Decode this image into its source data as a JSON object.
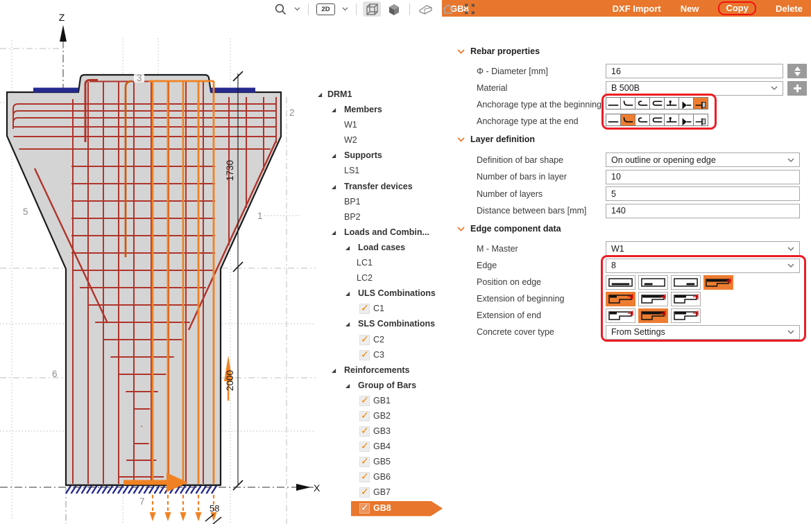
{
  "toolbar": {
    "mode_label": "2D",
    "icons": [
      "search-icon",
      "chevron-down-icon",
      "mode-2d-button",
      "chevron-down-icon",
      "wireframe-cube-icon",
      "solid-cube-icon",
      "prism-view-icon",
      "home-icon",
      "fullscreen-icon"
    ]
  },
  "header": {
    "title": "GB8",
    "actions": {
      "dxf": "DXF Import",
      "new": "New",
      "copy": "Copy",
      "delete": "Delete"
    },
    "copy_highlighted": true,
    "accent_color": "#E8762C",
    "annotation_color": "#EC1C24"
  },
  "tree": {
    "items": [
      {
        "label": "DRM1",
        "lvl": 0,
        "exp": 1,
        "bold": 1
      },
      {
        "label": "Members",
        "lvl": 1,
        "exp": 1,
        "bold": 1
      },
      {
        "label": "W1",
        "lvl": 1
      },
      {
        "label": "W2",
        "lvl": 1
      },
      {
        "label": "Supports",
        "lvl": 1,
        "exp": 1,
        "bold": 1
      },
      {
        "label": "LS1",
        "lvl": 1
      },
      {
        "label": "Transfer devices",
        "lvl": 1,
        "exp": 1,
        "bold": 1
      },
      {
        "label": "BP1",
        "lvl": 1
      },
      {
        "label": "BP2",
        "lvl": 1
      },
      {
        "label": "Loads and Combin...",
        "lvl": 1,
        "exp": 1,
        "bold": 1
      },
      {
        "label": "Load cases",
        "lvl": 2,
        "exp": 1,
        "bold": 1
      },
      {
        "label": "LC1",
        "lvl": 2
      },
      {
        "label": "LC2",
        "lvl": 2
      },
      {
        "label": "ULS Combinations",
        "lvl": 2,
        "exp": 1,
        "bold": 1
      },
      {
        "label": "C1",
        "check": 1
      },
      {
        "label": "SLS Combinations",
        "lvl": 2,
        "exp": 1,
        "bold": 1
      },
      {
        "label": "C2",
        "check": 1
      },
      {
        "label": "C3",
        "check": 1
      },
      {
        "label": "Reinforcements",
        "lvl": 1,
        "exp": 1,
        "bold": 1
      },
      {
        "label": "Group of Bars",
        "lvl": 2,
        "exp": 1,
        "bold": 1
      },
      {
        "label": "GB1",
        "check": 1
      },
      {
        "label": "GB2",
        "check": 1
      },
      {
        "label": "GB3",
        "check": 1
      },
      {
        "label": "GB4",
        "check": 1
      },
      {
        "label": "GB5",
        "check": 1
      },
      {
        "label": "GB6",
        "check": 1
      },
      {
        "label": "GB7",
        "check": 1
      },
      {
        "label": "GB8",
        "check": 1,
        "sel": 1
      }
    ]
  },
  "panel": {
    "sections": [
      {
        "title": "Rebar properties"
      },
      {
        "title": "Layer definition"
      },
      {
        "title": "Edge component data"
      }
    ],
    "fields": {
      "diameter": {
        "label": "Φ - Diameter [mm]",
        "value": "16"
      },
      "material": {
        "label": "Material",
        "value": "B 500B"
      },
      "anchorage_begin": {
        "label": "Anchorage type at the beginning",
        "selected_index": 6,
        "icons": [
          "straight",
          "bend-up",
          "hook",
          "loop",
          "welded-cross-bar",
          "welded-cone",
          "anchor-plate"
        ]
      },
      "anchorage_end": {
        "label": "Anchorage type at the end",
        "selected_index": 1,
        "icons": [
          "straight",
          "bend-up",
          "hook",
          "loop",
          "welded-cross-bar",
          "welded-cone",
          "anchor-plate"
        ]
      },
      "bar_shape": {
        "label": "Definition of bar shape",
        "value": "On outline or opening edge"
      },
      "bars_in_layer": {
        "label": "Number of bars in layer",
        "value": "10"
      },
      "layers": {
        "label": "Number of layers",
        "value": "5"
      },
      "bar_distance": {
        "label": "Distance between bars [mm]",
        "value": "140"
      },
      "master": {
        "label": "M - Master",
        "value": "W1"
      },
      "edge": {
        "label": "Edge",
        "value": "8"
      },
      "position_on_edge": {
        "label": "Position on edge",
        "selected_index": 3,
        "icons": [
          "bar-full-width",
          "bar-at-begin",
          "bar-at-end",
          "bar-whole-top"
        ]
      },
      "extension_begin": {
        "label": "Extension of beginning",
        "selected_index": 0,
        "icons": [
          "extension-none",
          "extension-full",
          "extension-partial"
        ]
      },
      "extension_end": {
        "label": "Extension of end",
        "selected_index": 1,
        "icons": [
          "extension-none",
          "extension-full",
          "extension-partial"
        ]
      },
      "cover": {
        "label": "Concrete cover type",
        "value": "From Settings"
      }
    }
  },
  "drawing": {
    "axis_z": "Z",
    "axis_x": "X",
    "dim_main": "1730",
    "dim_lower": "2000",
    "dim_small": "58",
    "labels": {
      "e1": "1",
      "e2": "2",
      "e3": "3",
      "e5": "5",
      "e6": "6",
      "e7": "7"
    },
    "colors": {
      "rebar": "#B0342B",
      "selected_group": "#F08223",
      "plates": "#252A8F",
      "concrete": "#D4D4D4"
    },
    "rebar": {
      "red_h_upper": [
        150,
        160,
        170,
        183,
        197,
        215
      ],
      "red_h_col": [
        240,
        265,
        290,
        315,
        340,
        365,
        390,
        415,
        440,
        465,
        490,
        515,
        540,
        565,
        590,
        615,
        640,
        664,
        688
      ],
      "red_v_full": [
        105,
        127,
        149,
        171,
        193,
        218,
        243,
        268,
        293
      ],
      "red_v_upper": [
        330,
        355,
        380,
        398
      ],
      "orange_v": [
        220,
        242,
        264,
        286,
        308
      ],
      "diagonals": [
        [
          50,
          243,
          155,
          466
        ],
        [
          398,
          203,
          272,
          476
        ]
      ]
    }
  }
}
